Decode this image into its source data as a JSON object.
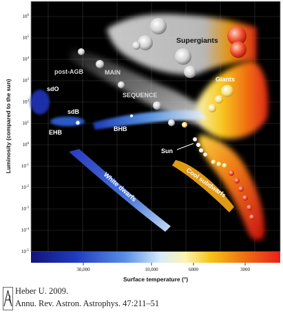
{
  "diagram": {
    "region_labels": {
      "supergiants": "Supergiants",
      "giants": "Giants",
      "post_agb": "post-AGB",
      "main": "MAIN",
      "sequence": "SEQUENCE",
      "sdo": "sdO",
      "sdb": "sdB",
      "ehb": "EHB",
      "bhb": "BHB",
      "sun": "Sun",
      "white_dwarfs": "White dwarfs",
      "cool_subdwarfs": "Cool subdwarfs"
    },
    "y_axis": {
      "label": "Luminosity (compared to the sun)",
      "ticks": [
        {
          "base": "10",
          "exp": "6"
        },
        {
          "base": "10",
          "exp": "5"
        },
        {
          "base": "10",
          "exp": "4"
        },
        {
          "base": "10",
          "exp": "3"
        },
        {
          "base": "10",
          "exp": "2"
        },
        {
          "base": "10",
          "exp": "1"
        },
        {
          "base": "10",
          "exp": "0"
        },
        {
          "base": "10",
          "exp": "-1"
        },
        {
          "base": "10",
          "exp": "-2"
        },
        {
          "base": "10",
          "exp": "-3"
        },
        {
          "base": "10",
          "exp": "-4"
        },
        {
          "base": "10",
          "exp": "-5"
        }
      ]
    },
    "x_axis": {
      "label": "Surface temperature (°)",
      "ticks": [
        "30,000",
        "10,000",
        "6000",
        "3000"
      ]
    }
  },
  "citation": {
    "line1": "Heber U. 2009.",
    "line2": "Annu. Rev. Astron. Astrophys. 47:211–51"
  },
  "colors": {
    "background": "#000000",
    "hot_blue": "#1e2fb0",
    "cool_red": "#e8321c"
  }
}
